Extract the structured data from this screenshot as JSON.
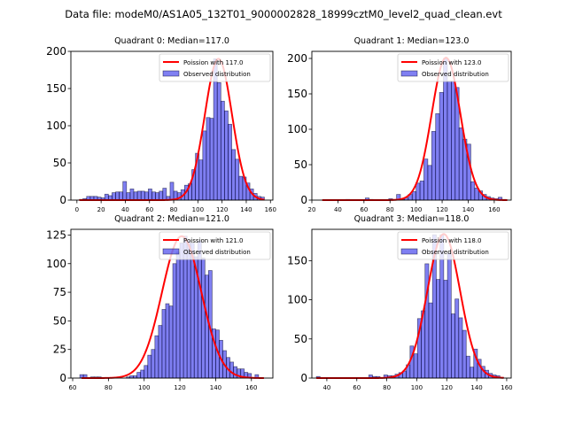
{
  "figure": {
    "suptitle": "Data file: modeM0/AS1A05_132T01_9000002828_18999cztM0_level2_quad_clean.evt"
  },
  "chart_data": [
    {
      "type": "bar",
      "title": "Quadrant 0: Median=117.0",
      "median": 117.0,
      "xlim": [
        -5,
        162
      ],
      "ylim": [
        0,
        200
      ],
      "xticks": [
        0,
        20,
        40,
        60,
        80,
        100,
        120,
        140,
        160
      ],
      "yticks": [
        0,
        50,
        100,
        150,
        200
      ],
      "bin_start": 2,
      "bin_width": 3,
      "values": [
        1,
        2,
        5,
        5,
        5,
        4,
        3,
        8,
        6,
        10,
        11,
        11,
        25,
        10,
        15,
        11,
        12,
        12,
        11,
        15,
        11,
        10,
        12,
        16,
        5,
        24,
        12,
        10,
        14,
        20,
        22,
        41,
        63,
        54,
        93,
        111,
        110,
        190,
        158,
        133,
        120,
        102,
        68,
        55,
        32,
        31,
        23,
        15,
        9,
        5,
        4
      ],
      "legend": {
        "line": "Poission with 117.0",
        "bars": "Observed distribution",
        "position": "upper-right"
      },
      "curve": {
        "mean": 117.0,
        "peak": 190,
        "sigma": 11.2,
        "range": [
          2,
          155
        ]
      }
    },
    {
      "type": "bar",
      "title": "Quadrant 1: Median=123.0",
      "median": 123.0,
      "xlim": [
        20,
        173
      ],
      "ylim": [
        0,
        210
      ],
      "xticks": [
        20,
        40,
        60,
        80,
        100,
        120,
        140,
        160
      ],
      "yticks": [
        0,
        50,
        100,
        150,
        200
      ],
      "bin_start": 28,
      "bin_width": 3,
      "values": [
        0,
        0,
        0,
        0,
        0,
        0,
        1,
        0,
        0,
        0,
        0,
        3,
        1,
        0,
        0,
        0,
        0,
        2,
        0,
        8,
        1,
        3,
        8,
        12,
        24,
        27,
        58,
        49,
        97,
        122,
        152,
        200,
        168,
        168,
        159,
        102,
        86,
        79,
        26,
        17,
        13,
        8,
        5,
        3,
        2,
        4,
        1,
        0
      ],
      "legend": {
        "line": "Poission with 123.0",
        "bars": "Observed distribution",
        "position": "upper-right"
      },
      "curve": {
        "mean": 123.0,
        "peak": 201,
        "sigma": 11.0,
        "range": [
          28,
          170
        ]
      }
    },
    {
      "type": "bar",
      "title": "Quadrant 2: Median=121.0",
      "median": 121.0,
      "xlim": [
        59,
        172
      ],
      "ylim": [
        0,
        130
      ],
      "xticks": [
        60,
        80,
        100,
        120,
        140,
        160
      ],
      "yticks": [
        0,
        25,
        50,
        75,
        100,
        125
      ],
      "bin_start": 64,
      "bin_width": 2,
      "values": [
        3,
        3,
        0,
        1,
        1,
        1,
        0,
        0,
        0,
        0,
        0,
        0,
        0,
        1,
        2,
        2,
        5,
        7,
        11,
        20,
        25,
        37,
        46,
        60,
        65,
        63,
        100,
        110,
        118,
        124,
        120,
        118,
        106,
        120,
        105,
        90,
        94,
        43,
        42,
        33,
        24,
        18,
        14,
        10,
        8,
        8,
        5,
        4,
        0,
        3,
        0,
        0
      ],
      "legend": {
        "line": "Poission with 121.0",
        "bars": "Observed distribution",
        "position": "upper-right"
      },
      "curve": {
        "mean": 121.0,
        "peak": 124,
        "sigma": 11.0,
        "range": [
          65,
          167
        ]
      }
    },
    {
      "type": "bar",
      "title": "Quadrant 3: Median=118.0",
      "median": 118.0,
      "xlim": [
        30,
        163
      ],
      "ylim": [
        0,
        190
      ],
      "xticks": [
        40,
        60,
        80,
        100,
        120,
        140,
        160
      ],
      "yticks": [
        0,
        50,
        100,
        150
      ],
      "bin_start": 33,
      "bin_width": 2.5,
      "values": [
        2,
        0,
        0,
        0,
        0,
        0,
        0,
        0,
        0,
        0,
        0,
        0,
        0,
        0,
        4,
        2,
        2,
        0,
        4,
        3,
        3,
        5,
        7,
        9,
        17,
        41,
        31,
        76,
        86,
        146,
        96,
        183,
        126,
        183,
        125,
        160,
        82,
        101,
        77,
        61,
        28,
        14,
        37,
        24,
        15,
        10,
        6,
        4,
        3,
        1
      ],
      "legend": {
        "line": "Poission with 118.0",
        "bars": "Observed distribution",
        "position": "upper-right"
      },
      "curve": {
        "mean": 118.0,
        "peak": 184,
        "sigma": 10.9,
        "range": [
          33,
          158
        ]
      }
    }
  ]
}
